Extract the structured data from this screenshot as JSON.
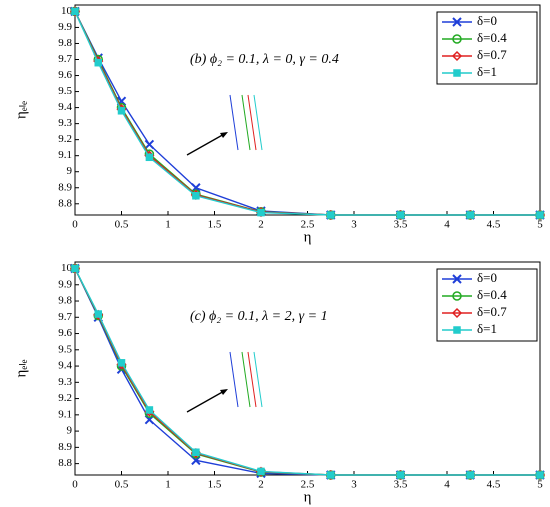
{
  "chart_data": [
    {
      "type": "line",
      "annotation": "(b) ϕ₂ = 0.1, λ = 0, γ = 0.4",
      "xlabel": "η",
      "ylabel": "ηₑₗₑ",
      "x": [
        0,
        0.25,
        0.5,
        0.8,
        1.3,
        2,
        2.75,
        3.5,
        4.25,
        5
      ],
      "series": [
        {
          "name": "δ=0",
          "color": "#1f3fd8",
          "marker": "x",
          "values": [
            10,
            9.71,
            9.44,
            9.17,
            8.9,
            8.755,
            8.73,
            8.73,
            8.73,
            8.73
          ]
        },
        {
          "name": "δ=0.4",
          "color": "#22aa22",
          "marker": "o",
          "values": [
            10,
            9.7,
            9.4,
            9.11,
            8.86,
            8.75,
            8.73,
            8.73,
            8.73,
            8.73
          ]
        },
        {
          "name": "δ=0.7",
          "color": "#e02020",
          "marker": "d",
          "values": [
            10,
            9.69,
            9.39,
            9.1,
            8.855,
            8.748,
            8.73,
            8.73,
            8.73,
            8.73
          ]
        },
        {
          "name": "δ=1",
          "color": "#22cccc",
          "marker": "s",
          "values": [
            10,
            9.68,
            9.38,
            9.09,
            8.85,
            8.745,
            8.73,
            8.73,
            8.73,
            8.73
          ]
        }
      ],
      "xlim": [
        0,
        5
      ],
      "xticks": [
        0,
        0.5,
        1,
        1.5,
        2,
        2.5,
        3,
        3.5,
        4,
        4.5,
        5
      ],
      "ylim": [
        8.73,
        10.04
      ],
      "yticks": [
        8.8,
        8.9,
        9,
        9.1,
        9.2,
        9.3,
        9.4,
        9.5,
        9.6,
        9.7,
        9.8,
        9.9,
        10
      ],
      "legend": "upper right"
    },
    {
      "type": "line",
      "annotation": "(c) ϕ₂ = 0.1, λ = 2, γ = 1",
      "xlabel": "η",
      "ylabel": "ηₑₗₑ",
      "x": [
        0,
        0.25,
        0.5,
        0.8,
        1.3,
        2,
        2.75,
        3.5,
        4.25,
        5
      ],
      "series": [
        {
          "name": "δ=0",
          "color": "#1f3fd8",
          "marker": "x",
          "values": [
            10,
            9.7,
            9.38,
            9.07,
            8.82,
            8.74,
            8.73,
            8.73,
            8.73,
            8.73
          ]
        },
        {
          "name": "δ=0.4",
          "color": "#22aa22",
          "marker": "o",
          "values": [
            10,
            9.71,
            9.4,
            9.11,
            8.86,
            8.748,
            8.73,
            8.73,
            8.73,
            8.73
          ]
        },
        {
          "name": "δ=0.7",
          "color": "#e02020",
          "marker": "d",
          "values": [
            10,
            9.715,
            9.41,
            9.12,
            8.865,
            8.75,
            8.73,
            8.73,
            8.73,
            8.73
          ]
        },
        {
          "name": "δ=1",
          "color": "#22cccc",
          "marker": "s",
          "values": [
            10,
            9.72,
            9.42,
            9.13,
            8.87,
            8.752,
            8.73,
            8.73,
            8.73,
            8.73
          ]
        }
      ],
      "xlim": [
        0,
        5
      ],
      "xticks": [
        0,
        0.5,
        1,
        1.5,
        2,
        2.5,
        3,
        3.5,
        4,
        4.5,
        5
      ],
      "ylim": [
        8.73,
        10.04
      ],
      "yticks": [
        8.8,
        8.9,
        9,
        9.1,
        9.2,
        9.3,
        9.4,
        9.5,
        9.6,
        9.7,
        9.8,
        9.9,
        10
      ],
      "legend": "upper right"
    }
  ]
}
